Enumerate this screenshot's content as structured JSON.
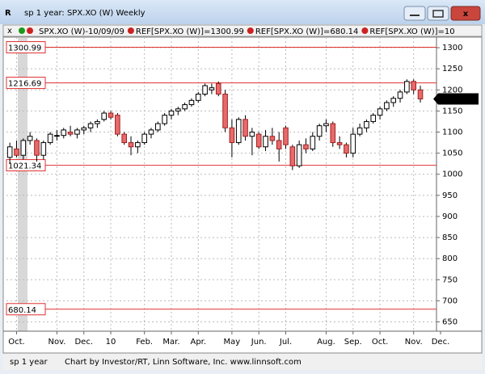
{
  "window_title": "sp 1 year: SPX.XO (W) Weekly",
  "toolbar": [
    "SPX.XO (W)-10/09/09",
    "REF[SPX.XO (W)]=1300.99",
    "REF[SPX.XO (W)]=680.14",
    "REF[SPX.XO (W)]=10"
  ],
  "status": [
    "sp 1 year",
    "Chart by Investor/RT, Linn Software, Inc. www.linnsoft.com"
  ],
  "chart_data": {
    "type": "candlestick",
    "open": [
      1040,
      1060,
      1045,
      1080,
      1080,
      1045,
      1075,
      1090,
      1092,
      1100,
      1095,
      1105,
      1110,
      1120,
      1130,
      1145,
      1140,
      1095,
      1075,
      1065,
      1075,
      1095,
      1105,
      1120,
      1140,
      1150,
      1155,
      1165,
      1175,
      1190,
      1200,
      1215,
      1190,
      1110,
      1075,
      1130,
      1090,
      1095,
      1065,
      1090,
      1080,
      1110,
      1065,
      1020,
      1070,
      1060,
      1090,
      1115,
      1120,
      1075,
      1070,
      1050,
      1095,
      1110,
      1125,
      1140,
      1155,
      1170,
      1180,
      1195,
      1220,
      1200
    ],
    "high": [
      1075,
      1080,
      1085,
      1100,
      1085,
      1080,
      1100,
      1105,
      1110,
      1115,
      1110,
      1115,
      1125,
      1130,
      1150,
      1150,
      1145,
      1100,
      1090,
      1080,
      1100,
      1110,
      1125,
      1145,
      1155,
      1160,
      1170,
      1180,
      1195,
      1215,
      1215,
      1220,
      1200,
      1130,
      1135,
      1140,
      1110,
      1100,
      1105,
      1110,
      1100,
      1115,
      1070,
      1080,
      1085,
      1100,
      1120,
      1130,
      1125,
      1090,
      1075,
      1110,
      1120,
      1130,
      1145,
      1160,
      1175,
      1185,
      1200,
      1225,
      1225,
      1210
    ],
    "low": [
      1025,
      1040,
      1035,
      1070,
      1030,
      1035,
      1070,
      1080,
      1085,
      1090,
      1085,
      1095,
      1100,
      1110,
      1125,
      1130,
      1090,
      1070,
      1045,
      1050,
      1070,
      1085,
      1100,
      1115,
      1130,
      1140,
      1150,
      1160,
      1170,
      1185,
      1190,
      1185,
      1100,
      1040,
      1070,
      1080,
      1045,
      1060,
      1055,
      1070,
      1030,
      1060,
      1010,
      1015,
      1050,
      1055,
      1080,
      1100,
      1065,
      1060,
      1040,
      1040,
      1090,
      1100,
      1120,
      1130,
      1150,
      1160,
      1170,
      1190,
      1190,
      1170
    ],
    "close": [
      1065,
      1045,
      1080,
      1090,
      1045,
      1075,
      1095,
      1092,
      1105,
      1095,
      1105,
      1110,
      1120,
      1125,
      1145,
      1135,
      1095,
      1075,
      1065,
      1075,
      1095,
      1105,
      1120,
      1140,
      1150,
      1155,
      1165,
      1175,
      1190,
      1210,
      1205,
      1190,
      1110,
      1075,
      1130,
      1090,
      1100,
      1065,
      1090,
      1080,
      1060,
      1070,
      1020,
      1070,
      1060,
      1090,
      1115,
      1120,
      1075,
      1070,
      1050,
      1095,
      1110,
      1125,
      1140,
      1155,
      1170,
      1180,
      1195,
      1220,
      1200,
      1178.59
    ],
    "xlim": [
      -0.5,
      63.4
    ],
    "xticks": [
      {
        "value": 1,
        "label": "Oct."
      },
      {
        "value": 7,
        "label": "Nov."
      },
      {
        "value": 11,
        "label": "Dec."
      },
      {
        "value": 15,
        "label": "10"
      },
      {
        "value": 20,
        "label": "Feb."
      },
      {
        "value": 24,
        "label": "Mar."
      },
      {
        "value": 28,
        "label": "Apr."
      },
      {
        "value": 33,
        "label": "May"
      },
      {
        "value": 37,
        "label": "Jun."
      },
      {
        "value": 41,
        "label": "Jul."
      },
      {
        "value": 47,
        "label": "Aug."
      },
      {
        "value": 51,
        "label": "Sep."
      },
      {
        "value": 55,
        "label": "Oct."
      },
      {
        "value": 60,
        "label": "Nov."
      },
      {
        "value": 64,
        "label": "Dec."
      }
    ],
    "ylim": [
      628,
      1325
    ],
    "yticks": [
      650,
      700,
      750,
      800,
      850,
      900,
      950,
      1000,
      1050,
      1100,
      1150,
      1200,
      1250,
      1300
    ],
    "reference_lines": [
      1300.99,
      1216.69,
      1021.34,
      680.14
    ],
    "last_price": 1178.59,
    "grid": true
  }
}
